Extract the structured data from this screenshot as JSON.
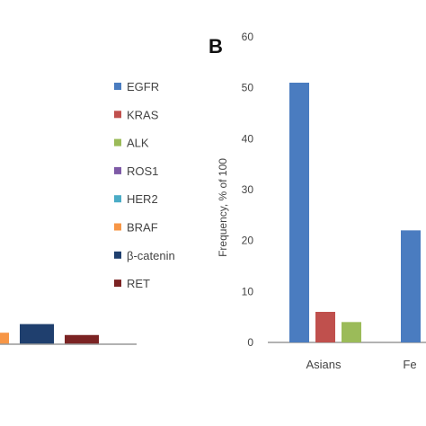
{
  "panel_label": "B",
  "colors": {
    "EGFR": "#4a7cc0",
    "KRAS": "#c0504d",
    "ALK": "#9bbb59",
    "ROS1": "#7e5aa6",
    "HER2": "#4bacc6",
    "BRAF": "#f79646",
    "β-catenin": "#1f3f6e",
    "RET": "#7b2323",
    "axis": "#999999",
    "text": "#444444"
  },
  "chart_data": [
    {
      "id": "panel-a-partial",
      "type": "bar",
      "series": [
        {
          "name": "BRAF",
          "values": [
            2
          ]
        },
        {
          "name": "β-catenin",
          "values": [
            3.5
          ]
        },
        {
          "name": "RET",
          "values": [
            1.6
          ]
        }
      ]
    },
    {
      "id": "panel-b",
      "type": "bar",
      "xlabel": "",
      "ylabel": "Frequency, % of 100",
      "ylim": [
        0,
        60
      ],
      "yticks": [
        0,
        10,
        20,
        30,
        40,
        50,
        60
      ],
      "grid": false,
      "legend_position": "left",
      "categories": [
        "Asians",
        "Fe"
      ],
      "series": [
        {
          "name": "EGFR",
          "values": [
            51,
            22
          ]
        },
        {
          "name": "KRAS",
          "values": [
            6,
            null
          ]
        },
        {
          "name": "ALK",
          "values": [
            4,
            null
          ]
        },
        {
          "name": "ROS1",
          "values": [
            null,
            null
          ]
        },
        {
          "name": "HER2",
          "values": [
            null,
            null
          ]
        },
        {
          "name": "BRAF",
          "values": [
            null,
            null
          ]
        },
        {
          "name": "β-catenin",
          "values": [
            null,
            null
          ]
        },
        {
          "name": "RET",
          "values": [
            null,
            null
          ]
        }
      ]
    }
  ]
}
